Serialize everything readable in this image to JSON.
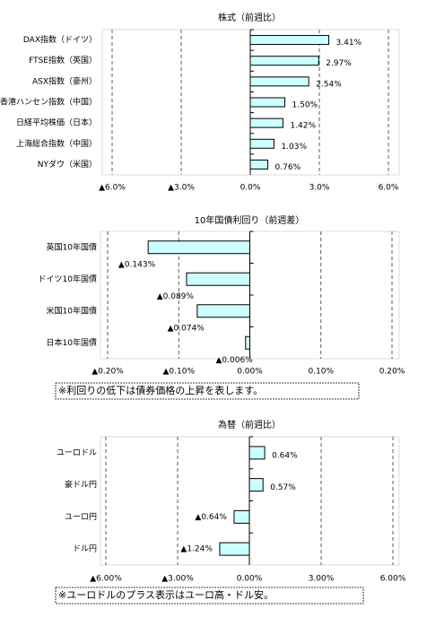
{
  "chart_data": [
    {
      "type": "hbar",
      "title": "株式（前週比）",
      "categories": [
        "DAX指数（ドイツ）",
        "FTSE指数（英国）",
        "ASX指数（豪州）",
        "香港ハンセン指数（中国）",
        "日経平均株価（日本）",
        "上海総合指数（中国）",
        "NYダウ（米国）"
      ],
      "values": [
        3.41,
        2.97,
        2.54,
        1.5,
        1.42,
        1.03,
        0.76
      ],
      "value_labels": [
        "3.41%",
        "2.97%",
        "2.54%",
        "1.50%",
        "1.42%",
        "1.03%",
        "0.76%"
      ],
      "xlim": [
        -6,
        6
      ],
      "xticks": [
        {
          "value": -6,
          "label": "▲6.0%"
        },
        {
          "value": -3,
          "label": "▲3.0%"
        },
        {
          "value": 0,
          "label": "0.0%"
        },
        {
          "value": 3,
          "label": "3.0%"
        },
        {
          "value": 6,
          "label": "6.0%"
        }
      ],
      "color": "#ccffff",
      "negative_color": "#ff0000",
      "grid": true
    },
    {
      "type": "hbar",
      "title": "10年国債利回り（前週差）",
      "categories": [
        "英国10年国債",
        "ドイツ10年国債",
        "米国10年国債",
        "日本10年国債"
      ],
      "values": [
        -0.143,
        -0.089,
        -0.074,
        -0.006
      ],
      "value_labels": [
        "▲0.143%",
        "▲0.089%",
        "▲0.074%",
        "▲0.006%"
      ],
      "xlim": [
        -0.2,
        0.2
      ],
      "xticks": [
        {
          "value": -0.2,
          "label": "▲0.20%"
        },
        {
          "value": -0.1,
          "label": "▲0.10%"
        },
        {
          "value": 0,
          "label": "0.00%"
        },
        {
          "value": 0.1,
          "label": "0.10%"
        },
        {
          "value": 0.2,
          "label": "0.20%"
        }
      ],
      "color": "#ccffff",
      "negative_color": "#ff0000",
      "grid": true,
      "note": "※利回りの低下は債券価格の上昇を表します。"
    },
    {
      "type": "hbar",
      "title": "為替（前週比）",
      "categories": [
        "ユーロドル",
        "豪ドル円",
        "ユーロ円",
        "ドル円"
      ],
      "values": [
        0.64,
        0.57,
        -0.64,
        -1.24
      ],
      "value_labels": [
        "0.64%",
        "0.57%",
        "▲0.64%",
        "▲1.24%"
      ],
      "xlim": [
        -6,
        6
      ],
      "xticks": [
        {
          "value": -6,
          "label": "▲6.00%"
        },
        {
          "value": -3,
          "label": "▲3.00%"
        },
        {
          "value": 0,
          "label": "0.00%"
        },
        {
          "value": 3,
          "label": "3.00%"
        },
        {
          "value": 6,
          "label": "6.00%"
        }
      ],
      "color": "#ccffff",
      "negative_color": "#ff0000",
      "grid": true,
      "note": "※ユーロドルのプラス表示はユーロ高・ドル安。"
    }
  ]
}
